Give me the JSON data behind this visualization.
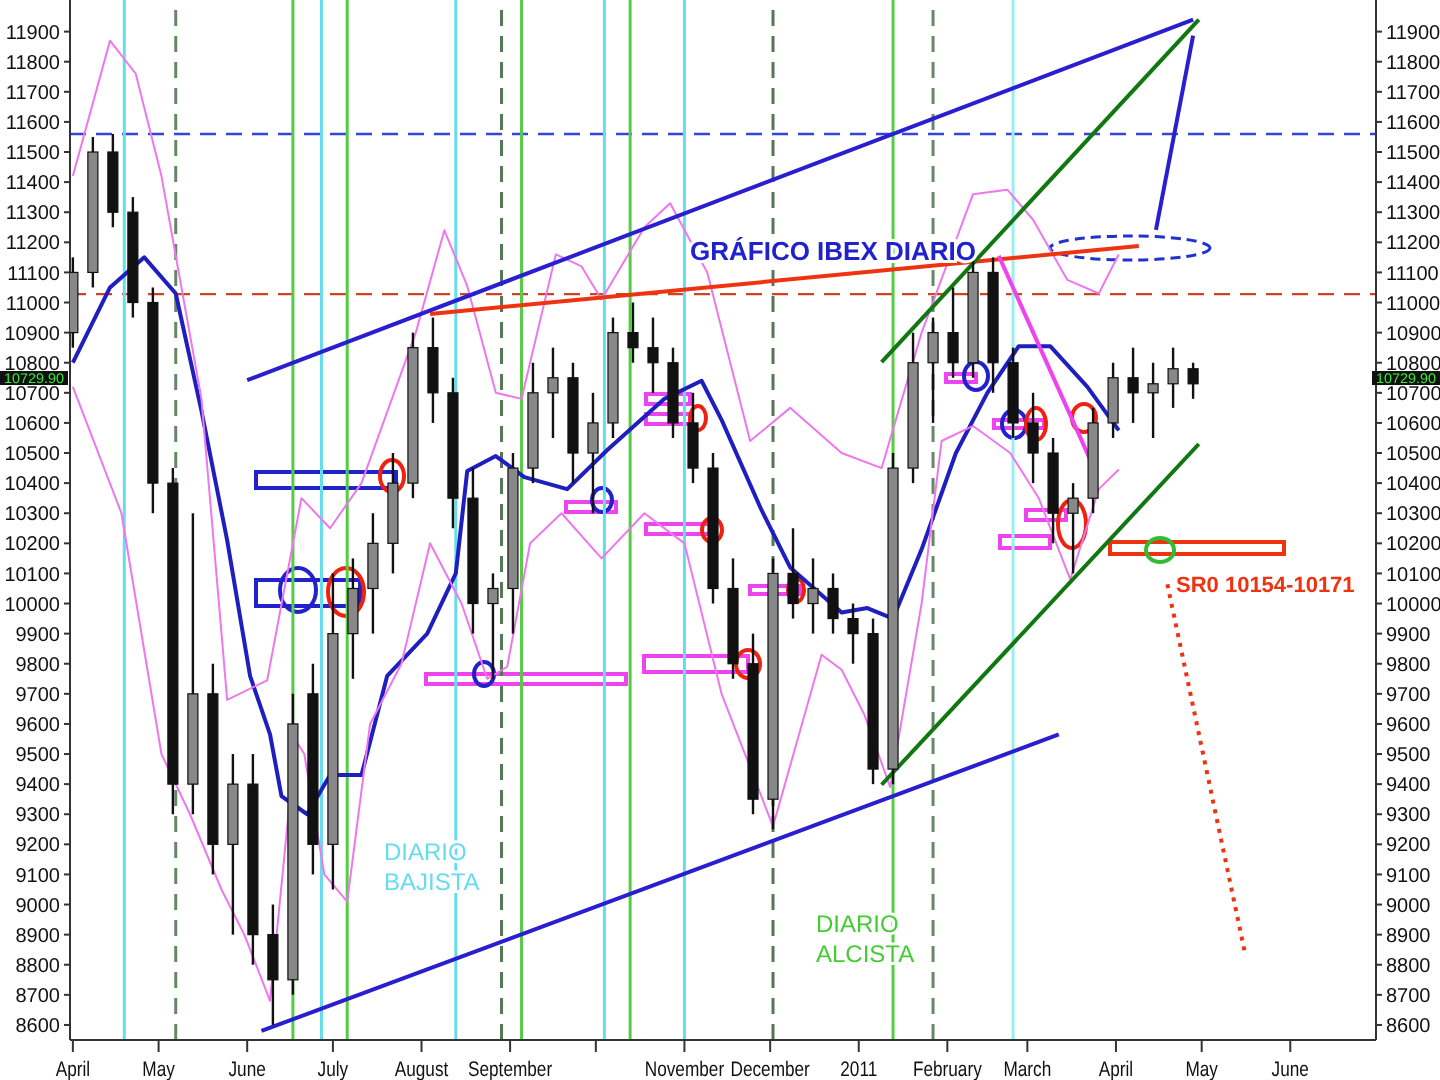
{
  "chart_data": {
    "type": "candlestick",
    "title": "GRÁFICO IBEX DIARIO",
    "x": [
      "2010-04-01",
      "2010-04-08",
      "2010-04-15",
      "2010-04-22",
      "2010-04-29",
      "2010-05-06",
      "2010-05-13",
      "2010-05-20",
      "2010-05-27",
      "2010-06-03",
      "2010-06-10",
      "2010-06-17",
      "2010-06-24",
      "2010-07-01",
      "2010-07-08",
      "2010-07-15",
      "2010-07-22",
      "2010-07-29",
      "2010-08-05",
      "2010-08-12",
      "2010-08-19",
      "2010-08-26",
      "2010-09-02",
      "2010-09-09",
      "2010-09-16",
      "2010-09-23",
      "2010-09-30",
      "2010-10-07",
      "2010-10-14",
      "2010-10-21",
      "2010-10-28",
      "2010-11-04",
      "2010-11-11",
      "2010-11-18",
      "2010-11-25",
      "2010-12-02",
      "2010-12-09",
      "2010-12-16",
      "2010-12-23",
      "2010-12-30",
      "2011-01-06",
      "2011-01-13",
      "2011-01-20",
      "2011-01-27",
      "2011-02-03",
      "2011-02-10",
      "2011-02-17",
      "2011-02-24",
      "2011-03-03",
      "2011-03-10",
      "2011-03-17",
      "2011-03-24",
      "2011-03-31",
      "2011-04-07",
      "2011-04-14",
      "2011-04-21",
      "2011-04-28"
    ],
    "ohlc": [
      [
        10900,
        11150,
        10850,
        11100
      ],
      [
        11100,
        11550,
        11050,
        11500
      ],
      [
        11500,
        11560,
        11250,
        11300
      ],
      [
        11300,
        11350,
        10950,
        11000
      ],
      [
        11000,
        11050,
        10300,
        10400
      ],
      [
        10400,
        10450,
        9300,
        9400
      ],
      [
        9400,
        10300,
        9300,
        9700
      ],
      [
        9700,
        9800,
        9100,
        9200
      ],
      [
        9200,
        9500,
        8900,
        9400
      ],
      [
        9400,
        9500,
        8800,
        8900
      ],
      [
        8900,
        9000,
        8600,
        8750
      ],
      [
        8750,
        9700,
        8700,
        9600
      ],
      [
        9700,
        9800,
        9100,
        9200
      ],
      [
        9200,
        10100,
        9050,
        9900
      ],
      [
        9900,
        10150,
        9750,
        10050
      ],
      [
        10050,
        10300,
        9900,
        10200
      ],
      [
        10200,
        10500,
        10100,
        10400
      ],
      [
        10400,
        10900,
        10350,
        10850
      ],
      [
        10850,
        10950,
        10600,
        10700
      ],
      [
        10700,
        10750,
        10250,
        10350
      ],
      [
        10350,
        10450,
        9900,
        10000
      ],
      [
        10000,
        10100,
        9750,
        10050
      ],
      [
        10050,
        10500,
        9900,
        10450
      ],
      [
        10450,
        10800,
        10400,
        10700
      ],
      [
        10700,
        10850,
        10550,
        10750
      ],
      [
        10750,
        10800,
        10400,
        10500
      ],
      [
        10500,
        10700,
        10300,
        10600
      ],
      [
        10600,
        10950,
        10550,
        10900
      ],
      [
        10900,
        11000,
        10800,
        10850
      ],
      [
        10850,
        10950,
        10700,
        10800
      ],
      [
        10800,
        10850,
        10550,
        10600
      ],
      [
        10600,
        10700,
        10400,
        10450
      ],
      [
        10450,
        10500,
        10000,
        10050
      ],
      [
        10050,
        10150,
        9750,
        9800
      ],
      [
        9800,
        9900,
        9300,
        9350
      ],
      [
        9350,
        10150,
        9250,
        10100
      ],
      [
        10100,
        10250,
        9950,
        10000
      ],
      [
        10000,
        10150,
        9900,
        10050
      ],
      [
        10050,
        10100,
        9900,
        9950
      ],
      [
        9950,
        10000,
        9800,
        9900
      ],
      [
        9900,
        9950,
        9400,
        9450
      ],
      [
        9450,
        10500,
        9400,
        10450
      ],
      [
        10450,
        10900,
        10400,
        10800
      ],
      [
        10800,
        10950,
        10600,
        10900
      ],
      [
        10900,
        11050,
        10750,
        10800
      ],
      [
        10800,
        11150,
        10750,
        11100
      ],
      [
        11100,
        11150,
        10700,
        10800
      ],
      [
        10800,
        10850,
        10550,
        10600
      ],
      [
        10600,
        10700,
        10400,
        10500
      ],
      [
        10500,
        10550,
        10200,
        10300
      ],
      [
        10300,
        10400,
        10100,
        10350
      ],
      [
        10350,
        10650,
        10300,
        10600
      ],
      [
        10600,
        10800,
        10550,
        10750
      ],
      [
        10750,
        10850,
        10600,
        10700
      ],
      [
        10700,
        10800,
        10550,
        10730
      ],
      [
        10730,
        10850,
        10650,
        10780
      ],
      [
        10780,
        10800,
        10680,
        10729.9
      ]
    ],
    "series": [
      {
        "type": "line",
        "color": "#1f1fbf",
        "x": [
          "2010-04-01",
          "2010-04-14",
          "2010-04-26",
          "2010-05-07",
          "2010-05-16",
          "2010-05-25",
          "2010-06-02",
          "2010-06-09",
          "2010-06-13",
          "2010-06-22",
          "2010-06-30",
          "2010-07-11",
          "2010-07-20",
          "2010-08-03",
          "2010-08-13",
          "2010-08-17",
          "2010-08-27",
          "2010-09-06",
          "2010-09-21",
          "2010-10-05",
          "2010-10-25",
          "2010-11-07",
          "2010-11-14",
          "2010-11-28",
          "2010-12-08",
          "2010-12-26",
          "2011-01-04",
          "2011-01-13",
          "2011-01-23",
          "2011-02-04",
          "2011-02-15",
          "2011-02-26",
          "2011-03-09",
          "2011-03-22",
          "2011-04-02"
        ],
        "values": [
          10800,
          11050,
          11150,
          11030,
          10640,
          10210,
          9760,
          9565,
          9360,
          9300,
          9430,
          9430,
          9760,
          9900,
          10100,
          10440,
          10490,
          10420,
          10380,
          10510,
          10680,
          10740,
          10610,
          10310,
          10120,
          9970,
          9985,
          9950,
          10180,
          10500,
          10700,
          10855,
          10855,
          10720,
          10575
        ]
      },
      {
        "type": "line",
        "color": "#ee77ee",
        "x": [
          "2010-04-01",
          "2010-04-14",
          "2010-04-23",
          "2010-05-02",
          "2010-05-16",
          "2010-05-25",
          "2010-06-08",
          "2010-06-20",
          "2010-06-30",
          "2010-07-11",
          "2010-07-30",
          "2010-08-09",
          "2010-08-17",
          "2010-08-27",
          "2010-09-05",
          "2010-09-17",
          "2010-09-26",
          "2010-10-03",
          "2010-10-18",
          "2010-10-27",
          "2010-11-09",
          "2010-11-24",
          "2010-12-08",
          "2010-12-26",
          "2011-01-09",
          "2011-01-23",
          "2011-02-10",
          "2011-02-22",
          "2011-03-03",
          "2011-03-15",
          "2011-03-26",
          "2011-04-02"
        ],
        "values": [
          11420,
          11870,
          11760,
          11420,
          10680,
          9680,
          9745,
          10350,
          10250,
          10400,
          10900,
          11240,
          11055,
          10700,
          10680,
          11160,
          11120,
          11010,
          11250,
          11330,
          11100,
          10540,
          10650,
          10500,
          10450,
          10900,
          11360,
          11375,
          11275,
          11075,
          11030,
          11160
        ]
      },
      {
        "type": "line",
        "color": "#ee77ee",
        "x": [
          "2010-04-01",
          "2010-04-18",
          "2010-05-02",
          "2010-05-12",
          "2010-05-23",
          "2010-05-31",
          "2010-06-09",
          "2010-06-18",
          "2010-06-21",
          "2010-06-28",
          "2010-07-06",
          "2010-07-14",
          "2010-07-25",
          "2010-08-04",
          "2010-08-15",
          "2010-08-24",
          "2010-08-31",
          "2010-09-08",
          "2010-09-19",
          "2010-10-03",
          "2010-10-18",
          "2010-11-01",
          "2010-11-14",
          "2010-12-02",
          "2010-12-19",
          "2010-12-26",
          "2011-01-03",
          "2011-01-12",
          "2011-01-23",
          "2011-01-30",
          "2011-02-10",
          "2011-02-23",
          "2011-03-05",
          "2011-03-16",
          "2011-03-26",
          "2011-04-02"
        ],
        "values": [
          10720,
          10300,
          9500,
          9300,
          9050,
          8900,
          8680,
          9545,
          9500,
          9100,
          9010,
          9600,
          9800,
          10200,
          10000,
          9750,
          9790,
          10200,
          10300,
          10150,
          10300,
          10200,
          9700,
          9260,
          9830,
          9780,
          9630,
          9390,
          10000,
          10540,
          10590,
          10500,
          10350,
          10080,
          10380,
          10445
        ]
      },
      {
        "type": "line",
        "color": "#2a1fd0",
        "x": [
          "2010-06-01",
          "2011-04-28"
        ],
        "values": [
          10742,
          11940
        ]
      },
      {
        "type": "line",
        "color": "#2a1fd0",
        "x": [
          "2010-06-06",
          "2011-03-12"
        ],
        "values": [
          8580,
          9565
        ]
      },
      {
        "type": "line",
        "color": "#ee3311",
        "x": [
          "2010-08-04",
          "2011-04-09"
        ],
        "values": [
          10962,
          11188
        ]
      },
      {
        "type": "line",
        "color": "#117711",
        "x": [
          "2011-01-09",
          "2011-04-30"
        ],
        "values": [
          10802,
          11940
        ]
      },
      {
        "type": "line",
        "color": "#117711",
        "x": [
          "2011-01-09",
          "2011-04-30"
        ],
        "values": [
          9398,
          10530
        ]
      },
      {
        "type": "line",
        "color": "#2a1fd0",
        "x": [
          "2011-04-15",
          "2011-04-28"
        ],
        "values": [
          11241,
          11887
        ]
      },
      {
        "type": "line",
        "color": "#ee44ee",
        "x": [
          "2011-02-19",
          "2011-03-23"
        ],
        "values": [
          11155,
          10478
        ]
      },
      {
        "type": "line",
        "color": "#ee3311",
        "line_style": "dotted",
        "x": [
          "2011-04-19",
          "2011-05-16"
        ],
        "values": [
          10064,
          8846
        ]
      }
    ],
    "ref_lines": [
      {
        "axis": "y",
        "value": 11560,
        "color": "#3344dd",
        "line_style": "dashed"
      },
      {
        "axis": "y",
        "value": 11028,
        "color": "#cc4422",
        "line_style": "dashed"
      },
      {
        "axis": "x",
        "value": "2010-04-19",
        "color": "#66ddee",
        "line_style": "solid"
      },
      {
        "axis": "x",
        "value": "2010-05-07",
        "color": "#668866",
        "line_style": "dashed"
      },
      {
        "axis": "x",
        "value": "2010-06-17",
        "color": "#55cc44",
        "line_style": "solid"
      },
      {
        "axis": "x",
        "value": "2010-06-27",
        "color": "#66ddee",
        "line_style": "solid"
      },
      {
        "axis": "x",
        "value": "2010-07-06",
        "color": "#55cc44",
        "line_style": "solid"
      },
      {
        "axis": "x",
        "value": "2010-08-13",
        "color": "#66ddee",
        "line_style": "solid"
      },
      {
        "axis": "x",
        "value": "2010-08-29",
        "color": "#557755",
        "line_style": "dashed"
      },
      {
        "axis": "x",
        "value": "2010-09-05",
        "color": "#55cc44",
        "line_style": "solid"
      },
      {
        "axis": "x",
        "value": "2010-10-04",
        "color": "#66ddee",
        "line_style": "solid"
      },
      {
        "axis": "x",
        "value": "2010-10-13",
        "color": "#55cc44",
        "line_style": "solid"
      },
      {
        "axis": "x",
        "value": "2010-11-01",
        "color": "#66ddee",
        "line_style": "solid"
      },
      {
        "axis": "x",
        "value": "2010-12-02",
        "color": "#557755",
        "line_style": "dashed"
      },
      {
        "axis": "x",
        "value": "2011-01-13",
        "color": "#55cc44",
        "line_style": "solid"
      },
      {
        "axis": "x",
        "value": "2011-01-27",
        "color": "#668866",
        "line_style": "dashed"
      },
      {
        "axis": "x",
        "value": "2011-02-24",
        "color": "#99eeee",
        "line_style": "solid"
      }
    ],
    "annotations": [
      "DIARIO BAJISTA",
      "DIARIO ALCISTA",
      "SR0 10154-10171",
      "10729.90"
    ],
    "xlim": [
      "2010-03-31",
      "2011-07-01"
    ],
    "xticks": [
      {
        "value": "2010-04-01",
        "label": "April"
      },
      {
        "value": "2010-05-01",
        "label": "May"
      },
      {
        "value": "2010-06-01",
        "label": "June"
      },
      {
        "value": "2010-07-01",
        "label": "July"
      },
      {
        "value": "2010-08-01",
        "label": "August"
      },
      {
        "value": "2010-09-01",
        "label": "September"
      },
      {
        "value": "2010-10-01",
        "label": null
      },
      {
        "value": "2010-11-01",
        "label": "November"
      },
      {
        "value": "2010-12-01",
        "label": "December"
      },
      {
        "value": "2011-01-01",
        "label": "2011"
      },
      {
        "value": "2011-02-01",
        "label": "February"
      },
      {
        "value": "2011-03-01",
        "label": "March"
      },
      {
        "value": "2011-04-01",
        "label": "April"
      },
      {
        "value": "2011-05-01",
        "label": "May"
      },
      {
        "value": "2011-06-01",
        "label": "June"
      }
    ],
    "ylim": [
      8550,
      12005
    ],
    "yticks": [
      8600,
      8700,
      8800,
      8900,
      9000,
      9100,
      9200,
      9300,
      9400,
      9500,
      9600,
      9700,
      9800,
      9900,
      10000,
      10100,
      10200,
      10300,
      10400,
      10500,
      10600,
      10700,
      10800,
      10900,
      11000,
      11100,
      11200,
      11300,
      11400,
      11500,
      11600,
      11700,
      11800,
      11900
    ],
    "y2lim": [
      8550,
      12005
    ],
    "y2ticks": [
      8600,
      8700,
      8800,
      8900,
      9000,
      9100,
      9200,
      9300,
      9400,
      9500,
      9600,
      9700,
      9800,
      9900,
      10000,
      10100,
      10200,
      10300,
      10400,
      10500,
      10600,
      10700,
      10800,
      10900,
      11000,
      11100,
      11200,
      11300,
      11400,
      11500,
      11600,
      11700,
      11800,
      11900
    ]
  }
}
